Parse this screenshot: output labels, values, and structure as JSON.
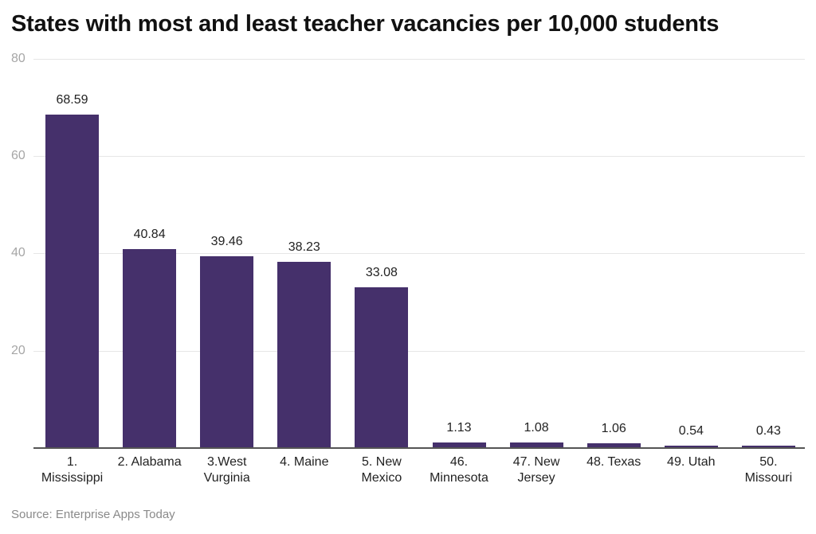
{
  "title": "States with most and least teacher vacancies per 10,000 students",
  "source": "Source: Enterprise Apps Today",
  "colors": {
    "bar": "#45306b",
    "grid": "#e6e6e6",
    "axis": "#555555"
  },
  "y_ticks": [
    "80",
    "60",
    "40",
    "20"
  ],
  "chart_data": {
    "type": "bar",
    "title": "States with most and least teacher vacancies per 10,000 students",
    "xlabel": "",
    "ylabel": "",
    "ylim": [
      0,
      80
    ],
    "yticks": [
      20,
      40,
      60,
      80
    ],
    "grid": true,
    "legend": null,
    "categories": [
      "1. Mississippi",
      "2. Alabama",
      "3.West Vurginia",
      "4. Maine",
      "5. New Mexico",
      "46. Minnesota",
      "47. New Jersey",
      "48. Texas",
      "49. Utah",
      "50. Missouri"
    ],
    "values": [
      68.59,
      40.84,
      39.46,
      38.23,
      33.08,
      1.13,
      1.08,
      1.06,
      0.54,
      0.43
    ],
    "value_labels": [
      "68.59",
      "40.84",
      "39.46",
      "38.23",
      "33.08",
      "1.13",
      "1.08",
      "1.06",
      "0.54",
      "0.43"
    ],
    "label_lines": [
      [
        "1.",
        "Mississippi"
      ],
      [
        "2. Alabama",
        ""
      ],
      [
        "3.West",
        "Vurginia"
      ],
      [
        "4. Maine",
        ""
      ],
      [
        "5. New",
        "Mexico"
      ],
      [
        "46.",
        "Minnesota"
      ],
      [
        "47. New",
        "Jersey"
      ],
      [
        "48. Texas",
        ""
      ],
      [
        "49. Utah",
        ""
      ],
      [
        "50.",
        "Missouri"
      ]
    ],
    "source": "Source: Enterprise Apps Today"
  }
}
